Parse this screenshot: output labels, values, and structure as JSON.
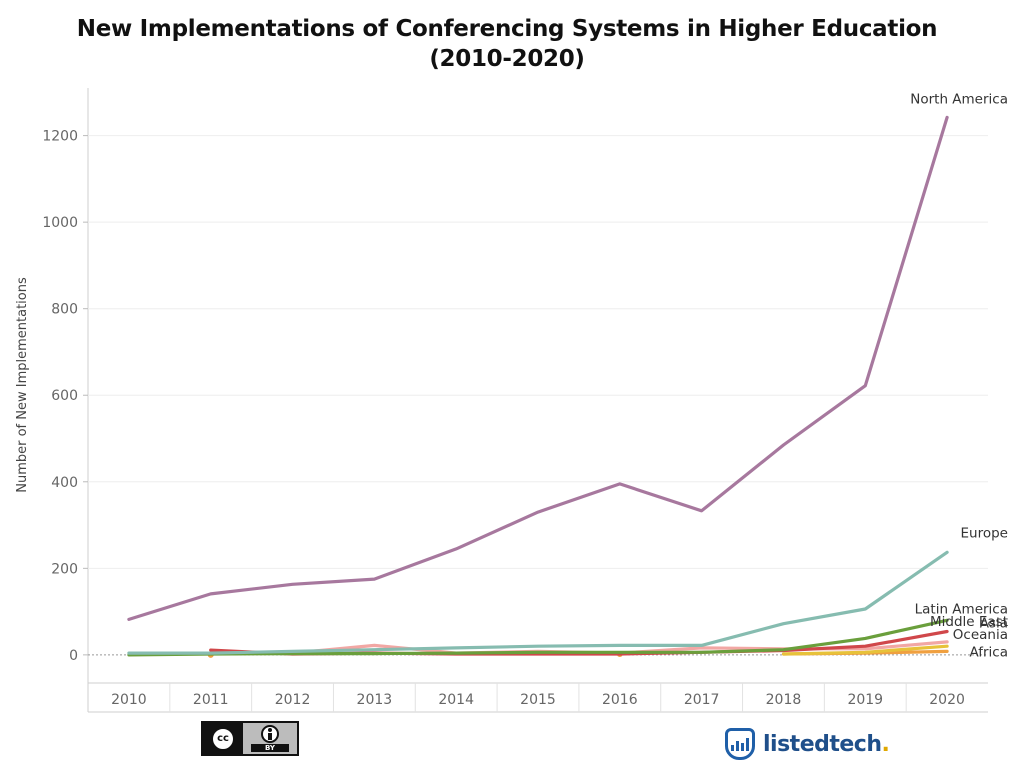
{
  "chart_data": {
    "type": "line",
    "title_line1": "New Implementations of Conferencing Systems in Higher Education",
    "title_line2": "(2010-2020)",
    "xlabel": "",
    "ylabel": "Number of New Implementations",
    "x": [
      "2010",
      "2011",
      "2012",
      "2013",
      "2014",
      "2015",
      "2016",
      "2017",
      "2018",
      "2019",
      "2020"
    ],
    "ylim": [
      -65,
      1310
    ],
    "yticks": [
      0,
      200,
      400,
      600,
      800,
      1000,
      1200
    ],
    "grid": true,
    "series": [
      {
        "name": "North America",
        "color": "#a7789e",
        "values": [
          82,
          141,
          163,
          175,
          245,
          330,
          395,
          333,
          485,
          622,
          1242
        ]
      },
      {
        "name": "Europe",
        "color": "#86bcb0",
        "values": [
          4,
          4,
          8,
          12,
          16,
          20,
          22,
          22,
          72,
          106,
          237
        ]
      },
      {
        "name": "Latin America",
        "color": "#6a9f3c",
        "values": [
          0,
          2,
          3,
          3,
          4,
          6,
          6,
          6,
          12,
          38,
          80
        ]
      },
      {
        "name": "Asia",
        "color": "#d0474a",
        "values": [
          null,
          11,
          2,
          4,
          2,
          2,
          2,
          6,
          10,
          20,
          54
        ]
      },
      {
        "name": "Middle East",
        "color": "#f2a7a4",
        "values": [
          null,
          null,
          4,
          22,
          4,
          8,
          4,
          16,
          14,
          14,
          30
        ]
      },
      {
        "name": "Oceania",
        "color": "#e7c23a",
        "values": [
          null,
          null,
          null,
          null,
          null,
          null,
          null,
          null,
          2,
          6,
          20
        ]
      },
      {
        "name": "Africa",
        "color": "#f0a040",
        "values": [
          null,
          0,
          null,
          null,
          null,
          null,
          2,
          null,
          2,
          4,
          8
        ]
      }
    ]
  },
  "footer": {
    "cc_text": "cc",
    "by_text": "BY",
    "brand_main": "listedtech",
    "brand_dot": "."
  }
}
